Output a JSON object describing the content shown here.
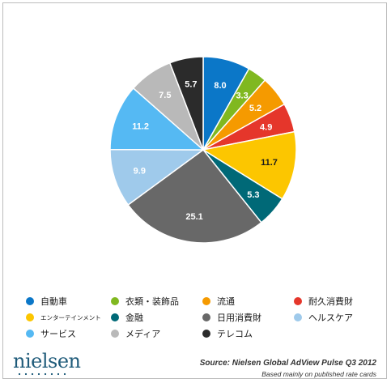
{
  "chart_data": {
    "type": "pie",
    "start_angle_deg": 0,
    "direction": "clockwise",
    "slices": [
      {
        "label": "自動車",
        "value": 8.0,
        "display": "8.0",
        "color": "#0b77c8"
      },
      {
        "label": "衣類・装飾品",
        "value": 3.3,
        "display": "3.3",
        "color": "#80b820"
      },
      {
        "label": "流通",
        "value": 5.2,
        "display": "5.2",
        "color": "#f59a00"
      },
      {
        "label": "耐久消費財",
        "value": 4.9,
        "display": "4.9",
        "color": "#e5362b"
      },
      {
        "label": "エンターテインメント",
        "value": 11.7,
        "display": "11.7",
        "color": "#fcc600"
      },
      {
        "label": "金融",
        "value": 5.3,
        "display": "5.3",
        "color": "#006977"
      },
      {
        "label": "日用消費財",
        "value": 25.1,
        "display": "25.1",
        "color": "#686868"
      },
      {
        "label": "ヘルスケア",
        "value": 9.9,
        "display": "9.9",
        "color": "#9fcaeb"
      },
      {
        "label": "サービス",
        "value": 11.2,
        "display": "11.2",
        "color": "#55b9f3"
      },
      {
        "label": "メディア",
        "value": 7.5,
        "display": "7.5",
        "color": "#b9b9b9"
      },
      {
        "label": "テレコム",
        "value": 5.7,
        "display": "5.7",
        "color": "#2b2b2b"
      }
    ],
    "legend_position": "bottom",
    "label_color": "#1a1a1a",
    "inside_label_color": "#ffffff"
  },
  "legend": {
    "rows": [
      [
        "自動車",
        "衣類・装飾品",
        "流通",
        "耐久消費財"
      ],
      [
        "エンターテインメント",
        "金融",
        "日用消費財",
        "ヘルスケア"
      ],
      [
        "サービス",
        "メディア",
        "テレコム"
      ]
    ]
  },
  "footer": {
    "logo": "nielsen",
    "source": "Source: Nielsen Global AdView Pulse Q3 2012",
    "note": "Based mainly on published rate cards"
  }
}
